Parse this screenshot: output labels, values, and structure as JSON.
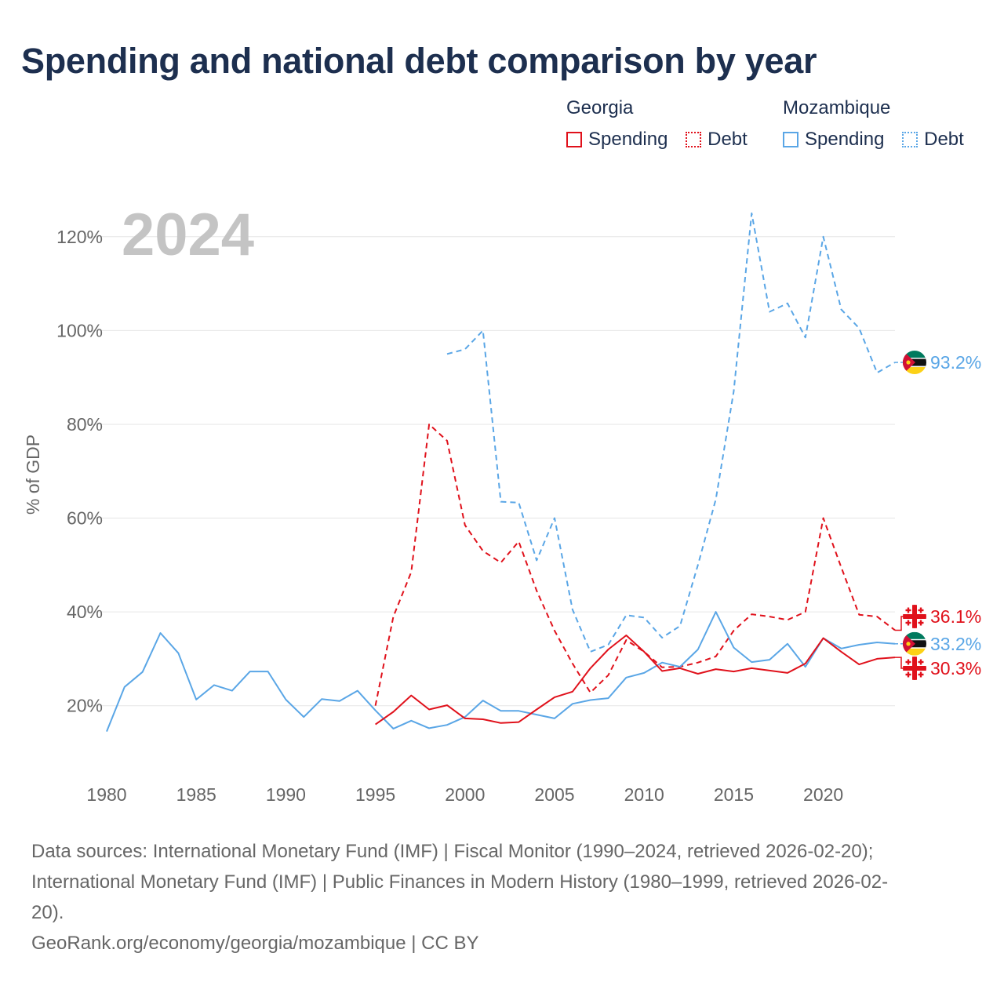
{
  "title": "Spending and national debt comparison by year",
  "year_badge": "2024",
  "legend": {
    "groups": [
      {
        "name": "Georgia",
        "color": "#e0111b",
        "items": [
          {
            "label": "Spending",
            "style": "solid"
          },
          {
            "label": "Debt",
            "style": "dotted"
          }
        ]
      },
      {
        "name": "Mozambique",
        "color": "#5aa6e6",
        "items": [
          {
            "label": "Spending",
            "style": "solid"
          },
          {
            "label": "Debt",
            "style": "dotted"
          }
        ]
      }
    ]
  },
  "chart_data": {
    "type": "line",
    "ylabel": "% of GDP",
    "xlabel": "",
    "xlim": [
      1980,
      2024
    ],
    "ylim": [
      10,
      130
    ],
    "x_ticks": [
      1980,
      1985,
      1990,
      1995,
      2000,
      2005,
      2010,
      2015,
      2020
    ],
    "y_ticks": [
      {
        "value": 20,
        "label": "20%"
      },
      {
        "value": 40,
        "label": "40%"
      },
      {
        "value": 60,
        "label": "60%"
      },
      {
        "value": 80,
        "label": "80%"
      },
      {
        "value": 100,
        "label": "100%"
      },
      {
        "value": 120,
        "label": "120%"
      }
    ],
    "series": [
      {
        "name": "Mozambique Debt",
        "country": "Mozambique",
        "color": "#5aa6e6",
        "dash": "dashed",
        "x": [
          1999,
          2000,
          2001,
          2002,
          2003,
          2004,
          2005,
          2006,
          2007,
          2008,
          2009,
          2010,
          2011,
          2012,
          2013,
          2014,
          2015,
          2016,
          2017,
          2018,
          2019,
          2020,
          2021,
          2022,
          2023,
          2024
        ],
        "values": [
          95,
          96,
          100,
          63.5,
          63.3,
          51,
          60,
          40.5,
          31.5,
          33,
          39.3,
          38.8,
          34.5,
          37,
          50,
          64,
          87,
          125,
          104,
          105.8,
          98.5,
          120,
          104.5,
          100.5,
          91,
          93.2
        ]
      },
      {
        "name": "Georgia Debt",
        "country": "Georgia",
        "color": "#e0111b",
        "dash": "dashed",
        "x": [
          1995,
          1996,
          1997,
          1998,
          1999,
          2000,
          2001,
          2002,
          2003,
          2004,
          2005,
          2006,
          2007,
          2008,
          2009,
          2010,
          2011,
          2012,
          2013,
          2014,
          2015,
          2016,
          2017,
          2018,
          2019,
          2020,
          2021,
          2022,
          2023,
          2024
        ],
        "values": [
          20,
          39,
          48.5,
          80,
          76.5,
          58.5,
          53,
          50.5,
          55,
          44.5,
          36,
          29,
          22.8,
          26.5,
          34,
          31.5,
          28.2,
          28.3,
          29.2,
          30.5,
          36,
          39.5,
          39,
          38.3,
          40,
          60,
          49.5,
          39.4,
          39,
          36.1
        ]
      },
      {
        "name": "Mozambique Spending",
        "country": "Mozambique",
        "color": "#5aa6e6",
        "dash": "solid",
        "x": [
          1980,
          1981,
          1982,
          1983,
          1984,
          1985,
          1986,
          1987,
          1988,
          1989,
          1990,
          1991,
          1992,
          1993,
          1994,
          1995,
          1996,
          1997,
          1998,
          1999,
          2000,
          2001,
          2002,
          2003,
          2004,
          2005,
          2006,
          2007,
          2008,
          2009,
          2010,
          2011,
          2012,
          2013,
          2014,
          2015,
          2016,
          2017,
          2018,
          2019,
          2020,
          2021,
          2022,
          2023,
          2024
        ],
        "values": [
          14.5,
          24,
          27.2,
          35.5,
          31.2,
          21.3,
          24.4,
          23.2,
          27.3,
          27.3,
          21.3,
          17.6,
          21.4,
          21,
          23.2,
          19,
          15.1,
          16.8,
          15.2,
          15.9,
          17.6,
          21.1,
          18.9,
          18.9,
          18.1,
          17.3,
          20.4,
          21.2,
          21.6,
          26,
          27,
          29.2,
          28.3,
          32,
          40,
          32.4,
          29.3,
          29.8,
          33.2,
          28.3,
          34.4,
          32.2,
          33,
          33.5,
          33.2
        ]
      },
      {
        "name": "Georgia Spending",
        "country": "Georgia",
        "color": "#e0111b",
        "dash": "solid",
        "x": [
          1995,
          1996,
          1997,
          1998,
          1999,
          2000,
          2001,
          2002,
          2003,
          2004,
          2005,
          2006,
          2007,
          2008,
          2009,
          2010,
          2011,
          2012,
          2013,
          2014,
          2015,
          2016,
          2017,
          2018,
          2019,
          2020,
          2021,
          2022,
          2023,
          2024
        ],
        "values": [
          16,
          18.7,
          22.2,
          19.2,
          20.1,
          17.3,
          17.1,
          16.3,
          16.5,
          19.2,
          21.8,
          23,
          28,
          32,
          35,
          31.5,
          27.4,
          28,
          26.8,
          27.8,
          27.3,
          28,
          27.5,
          27,
          29,
          34.4,
          31.5,
          28.8,
          30,
          30.3
        ]
      }
    ],
    "end_labels": [
      {
        "text": "93.2%",
        "value": 93.2,
        "country": "Mozambique",
        "color": "#5aa6e6",
        "flag": "mozambique-flag-icon"
      },
      {
        "text": "36.1%",
        "value": 36.1,
        "country": "Georgia",
        "color": "#e0111b",
        "flag": "georgia-flag-icon"
      },
      {
        "text": "33.2%",
        "value": 33.2,
        "country": "Mozambique",
        "color": "#5aa6e6",
        "flag": "mozambique-flag-icon"
      },
      {
        "text": "30.3%",
        "value": 30.3,
        "country": "Georgia",
        "color": "#e0111b",
        "flag": "georgia-flag-icon"
      }
    ]
  },
  "sources": {
    "line1": "Data sources: International Monetary Fund (IMF) | Fiscal Monitor (1990–2024, retrieved 2026-02-20);",
    "line2": "International Monetary Fund (IMF) | Public Finances in Modern History (1980–1999, retrieved 2026-02-",
    "line3": "20).",
    "credit": "GeoRank.org/economy/georgia/mozambique | CC BY"
  }
}
